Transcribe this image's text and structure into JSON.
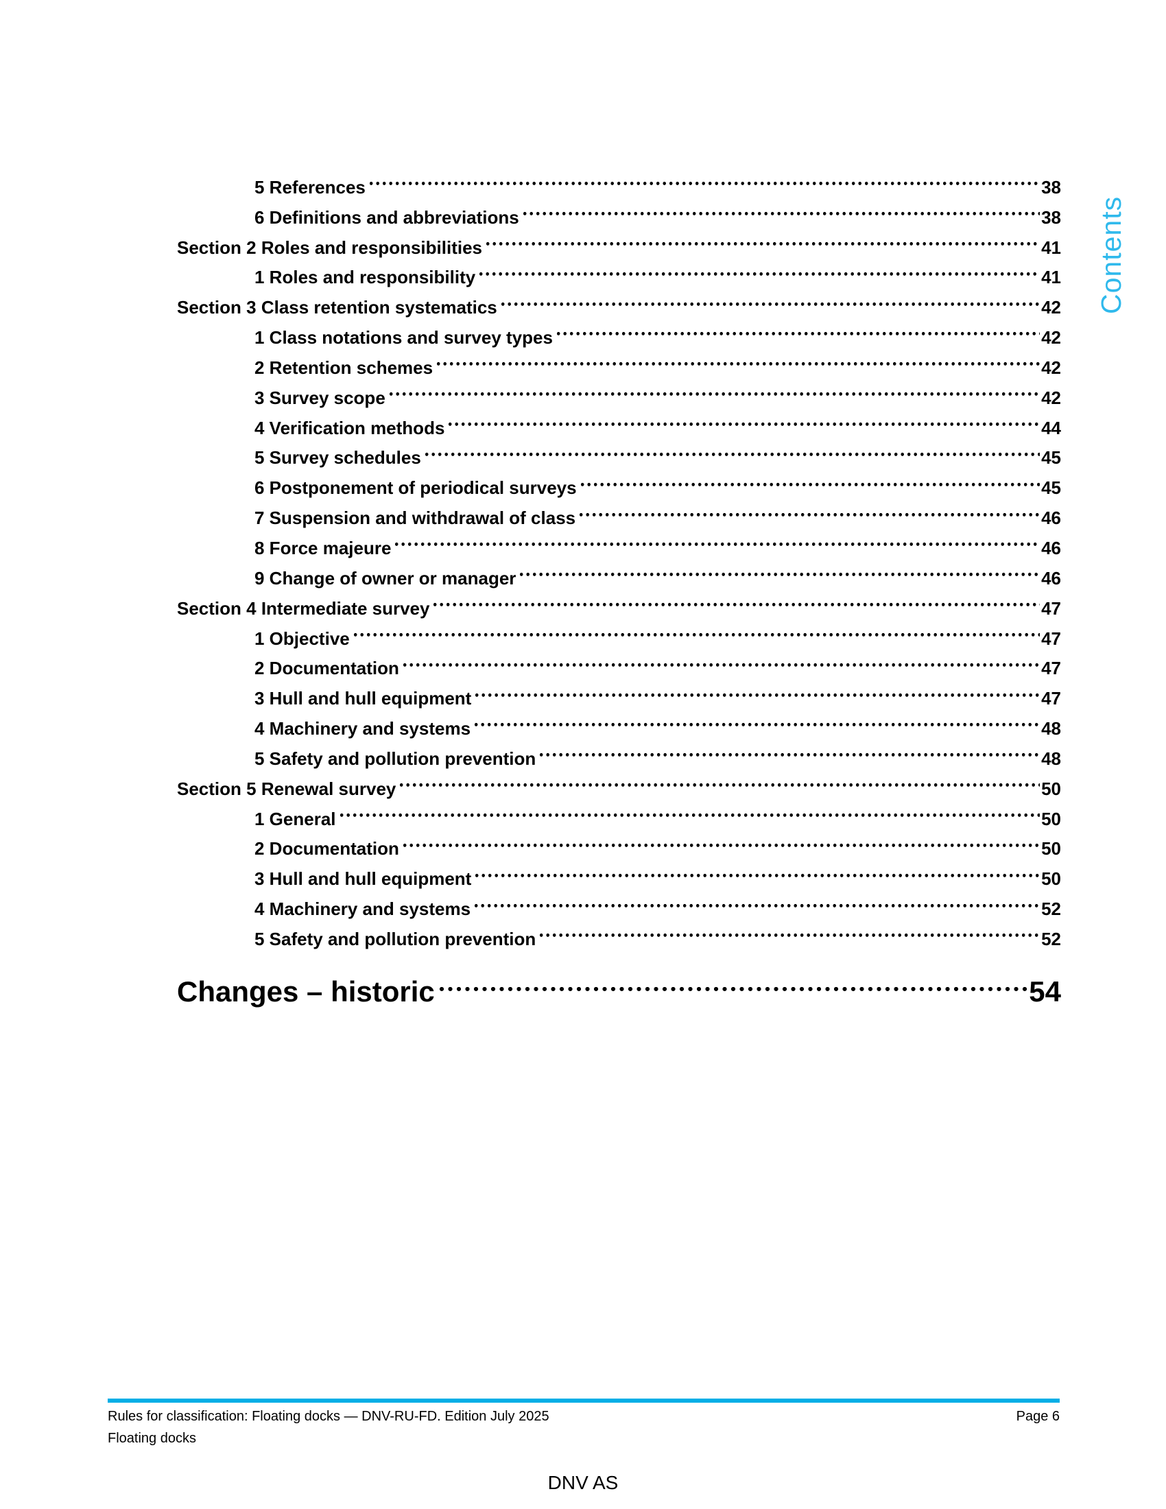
{
  "sidebar_label": "Contents",
  "colors": {
    "accent_cyan_rule": "#00AEE6",
    "contents_label_cyan": "#2FB9EC",
    "text": "#000000"
  },
  "toc": {
    "entries": [
      {
        "label": "5 References",
        "page": "38",
        "level": "sub"
      },
      {
        "label": "6 Definitions and abbreviations",
        "page": "38",
        "level": "sub"
      },
      {
        "label": "Section 2 Roles and responsibilities",
        "page": "41",
        "level": "section"
      },
      {
        "label": "1 Roles and responsibility",
        "page": "41",
        "level": "sub"
      },
      {
        "label": "Section 3 Class retention systematics",
        "page": "42",
        "level": "section"
      },
      {
        "label": "1 Class notations and survey types",
        "page": "42",
        "level": "sub"
      },
      {
        "label": "2 Retention schemes",
        "page": "42",
        "level": "sub"
      },
      {
        "label": "3 Survey scope",
        "page": "42",
        "level": "sub"
      },
      {
        "label": "4 Verification methods",
        "page": "44",
        "level": "sub"
      },
      {
        "label": "5 Survey schedules",
        "page": "45",
        "level": "sub"
      },
      {
        "label": "6 Postponement of periodical surveys",
        "page": "45",
        "level": "sub"
      },
      {
        "label": "7 Suspension and withdrawal of class",
        "page": "46",
        "level": "sub"
      },
      {
        "label": "8 Force majeure",
        "page": "46",
        "level": "sub"
      },
      {
        "label": "9 Change of owner or manager",
        "page": "46",
        "level": "sub"
      },
      {
        "label": "Section 4 Intermediate survey",
        "page": "47",
        "level": "section"
      },
      {
        "label": "1 Objective",
        "page": "47",
        "level": "sub"
      },
      {
        "label": "2 Documentation",
        "page": "47",
        "level": "sub"
      },
      {
        "label": "3 Hull and hull equipment",
        "page": "47",
        "level": "sub"
      },
      {
        "label": "4 Machinery and systems",
        "page": "48",
        "level": "sub"
      },
      {
        "label": "5 Safety and pollution prevention",
        "page": "48",
        "level": "sub"
      },
      {
        "label": "Section 5 Renewal survey",
        "page": "50",
        "level": "section"
      },
      {
        "label": "1 General",
        "page": "50",
        "level": "sub"
      },
      {
        "label": "2 Documentation",
        "page": "50",
        "level": "sub"
      },
      {
        "label": "3 Hull and hull equipment",
        "page": "50",
        "level": "sub"
      },
      {
        "label": "4 Machinery and systems",
        "page": "52",
        "level": "sub"
      },
      {
        "label": "5 Safety and pollution prevention",
        "page": "52",
        "level": "sub"
      }
    ],
    "heading_entry": {
      "label": "Changes – historic",
      "page": "54"
    }
  },
  "footer": {
    "line1_left": "Rules for classification: Floating docks — DNV-RU-FD. Edition July 2025",
    "line1_right": "Page 6",
    "line2_left": "Floating docks",
    "publisher": "DNV AS"
  }
}
